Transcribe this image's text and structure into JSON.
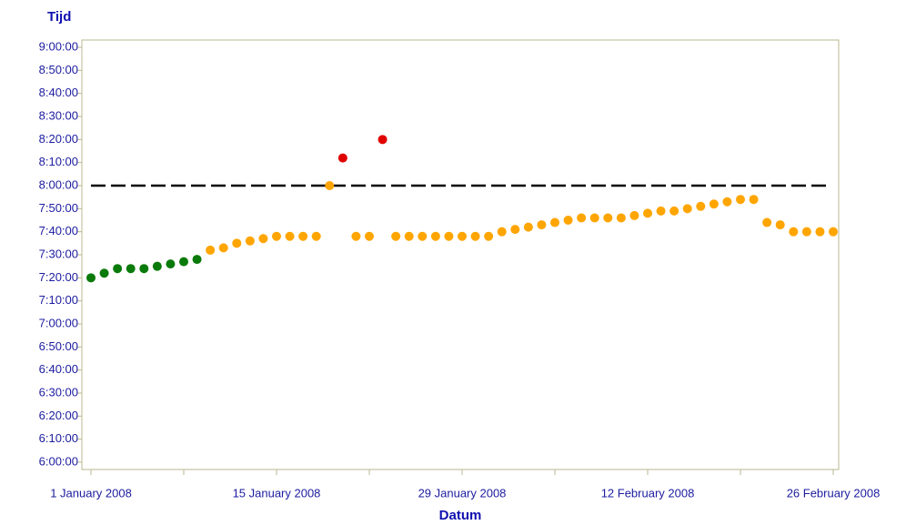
{
  "chart_data": {
    "type": "scatter",
    "title": "Tijd",
    "x_label": "Datum",
    "xlim": [
      "2008-01-01",
      "2008-02-26"
    ],
    "xticks": [
      {
        "value": "2008-01-01",
        "label": "1 January 2008"
      },
      {
        "value": "2008-01-15",
        "label": "15 January 2008"
      },
      {
        "value": "2008-01-29",
        "label": "29 January 2008"
      },
      {
        "value": "2008-02-12",
        "label": "12 February 2008"
      },
      {
        "value": "2008-02-26",
        "label": "26 February 2008"
      }
    ],
    "xminorticks": [
      "2008-01-08",
      "2008-01-22",
      "2008-02-05",
      "2008-02-19"
    ],
    "ylim": [
      360,
      540
    ],
    "yticks": [
      {
        "value": 360,
        "label": "6:00:00"
      },
      {
        "value": 370,
        "label": "6:10:00"
      },
      {
        "value": 380,
        "label": "6:20:00"
      },
      {
        "value": 390,
        "label": "6:30:00"
      },
      {
        "value": 400,
        "label": "6:40:00"
      },
      {
        "value": 410,
        "label": "6:50:00"
      },
      {
        "value": 420,
        "label": "7:00:00"
      },
      {
        "value": 430,
        "label": "7:10:00"
      },
      {
        "value": 440,
        "label": "7:20:00"
      },
      {
        "value": 450,
        "label": "7:30:00"
      },
      {
        "value": 460,
        "label": "7:40:00"
      },
      {
        "value": 470,
        "label": "7:50:00"
      },
      {
        "value": 480,
        "label": "8:00:00"
      },
      {
        "value": 490,
        "label": "8:10:00"
      },
      {
        "value": 500,
        "label": "8:20:00"
      },
      {
        "value": 510,
        "label": "8:30:00"
      },
      {
        "value": 520,
        "label": "8:40:00"
      },
      {
        "value": 530,
        "label": "8:50:00"
      },
      {
        "value": 540,
        "label": "9:00:00"
      }
    ],
    "reference_line": 480,
    "reference_color": "#000000",
    "series": [
      {
        "color": "#0a7a0a",
        "x": [
          "2008-01-01",
          "2008-01-02",
          "2008-01-03",
          "2008-01-04",
          "2008-01-05",
          "2008-01-06",
          "2008-01-07",
          "2008-01-08",
          "2008-01-09"
        ],
        "values": [
          440,
          442,
          444,
          444,
          444,
          445,
          446,
          447,
          448
        ]
      },
      {
        "color": "#ffa500",
        "x": [
          "2008-01-10",
          "2008-01-11",
          "2008-01-12",
          "2008-01-13",
          "2008-01-14",
          "2008-01-15",
          "2008-01-16",
          "2008-01-17",
          "2008-01-18",
          "2008-01-19",
          "2008-01-21",
          "2008-01-22",
          "2008-01-24",
          "2008-01-25",
          "2008-01-26",
          "2008-01-27",
          "2008-01-28",
          "2008-01-29",
          "2008-01-30",
          "2008-01-31",
          "2008-02-01",
          "2008-02-02",
          "2008-02-03",
          "2008-02-04",
          "2008-02-05",
          "2008-02-06",
          "2008-02-07",
          "2008-02-08",
          "2008-02-09",
          "2008-02-10",
          "2008-02-11",
          "2008-02-12",
          "2008-02-13",
          "2008-02-14",
          "2008-02-15",
          "2008-02-16",
          "2008-02-17",
          "2008-02-18",
          "2008-02-19",
          "2008-02-20",
          "2008-02-21",
          "2008-02-22",
          "2008-02-23",
          "2008-02-24",
          "2008-02-25",
          "2008-02-26"
        ],
        "values": [
          452,
          453,
          455,
          456,
          457,
          458,
          458,
          458,
          458,
          480,
          458,
          458,
          458,
          458,
          458,
          458,
          458,
          458,
          458,
          458,
          460,
          461,
          462,
          463,
          464,
          465,
          466,
          466,
          466,
          466,
          467,
          468,
          469,
          469,
          470,
          471,
          472,
          473,
          474,
          474,
          464,
          463,
          460,
          460,
          460,
          460
        ]
      },
      {
        "color": "#e00000",
        "x": [
          "2008-01-20",
          "2008-01-23"
        ],
        "values": [
          492,
          500
        ]
      }
    ]
  }
}
